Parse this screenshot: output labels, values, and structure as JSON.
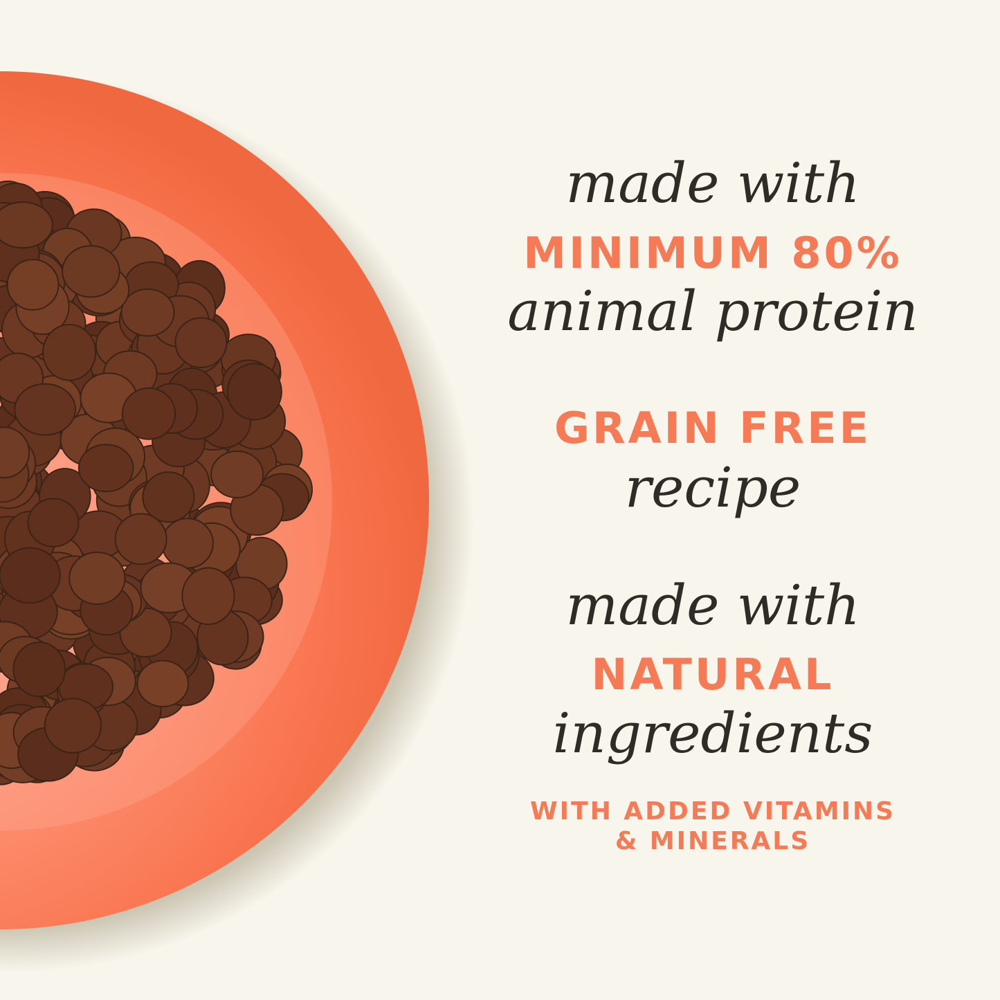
{
  "colors": {
    "background": "#f8f5ec",
    "plate": "#fd8f70",
    "accent": "#f57a56",
    "text": "#2f2b27",
    "kibble": "#5a3b27"
  },
  "claims": [
    {
      "script_top": "made with",
      "caps": "MINIMUM 80%",
      "script_bottom": "animal protein"
    },
    {
      "caps": "GRAIN FREE",
      "script_bottom": "recipe"
    },
    {
      "script_top": "made with",
      "caps": "NATURAL",
      "script_bottom": "ingredients",
      "note_line1": "WITH ADDED VITAMINS",
      "note_line2": "& MINERALS"
    }
  ]
}
